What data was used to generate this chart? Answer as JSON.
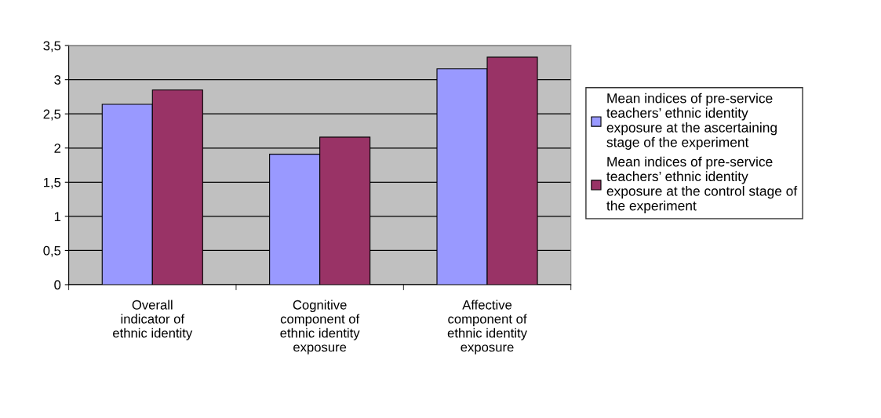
{
  "chart_data": {
    "type": "bar",
    "categories": [
      "Overall indicator of ethnic identity",
      "Cognitive component of ethnic identity exposure",
      "Affective component of ethnic identity exposure"
    ],
    "series": [
      {
        "name": "Mean indices of pre-service teachers’ ethnic identity exposure at the ascertaining stage of the experiment",
        "color": "#9999ff",
        "values": [
          2.64,
          1.91,
          3.16
        ]
      },
      {
        "name": "Mean indices of pre-service teachers’ ethnic identity exposure at the control stage of the experiment",
        "color": "#993366",
        "values": [
          2.85,
          2.16,
          3.33
        ]
      }
    ],
    "ylim": [
      0,
      3.5
    ],
    "yticks": [
      {
        "value": 0,
        "label": "0"
      },
      {
        "value": 0.5,
        "label": "0,5"
      },
      {
        "value": 1,
        "label": "1"
      },
      {
        "value": 1.5,
        "label": "1,5"
      },
      {
        "value": 2,
        "label": "2"
      },
      {
        "value": 2.5,
        "label": "2,5"
      },
      {
        "value": 3,
        "label": "3"
      },
      {
        "value": 3.5,
        "label": "3,5"
      }
    ],
    "grid": "y",
    "legend": "right"
  }
}
